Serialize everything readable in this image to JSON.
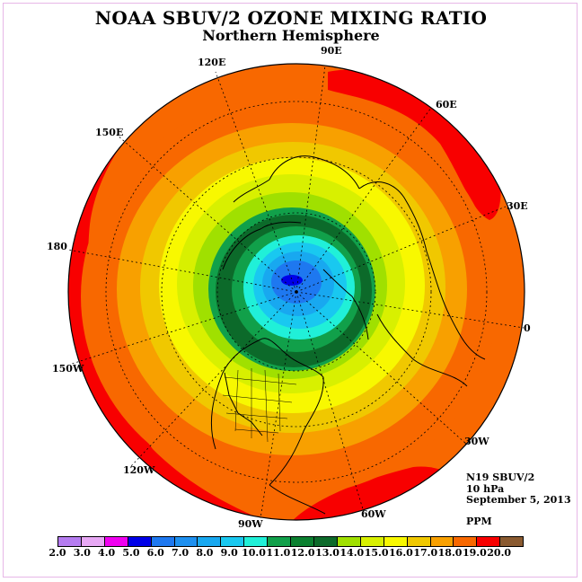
{
  "title": "NOAA SBUV/2 OZONE MIXING RATIO",
  "subtitle": "Northern Hemisphere",
  "longitude_labels": [
    "90E",
    "60E",
    "30E",
    "0",
    "30W",
    "60W",
    "90W",
    "120W",
    "150W",
    "180",
    "150E",
    "120E"
  ],
  "info": {
    "instrument": "N19 SBUV/2",
    "level": "10 hPa",
    "date": "September 5, 2013",
    "units": "PPM"
  },
  "colorbar": {
    "ticks": [
      "2.0",
      "3.0",
      "4.0",
      "5.0",
      "6.0",
      "7.0",
      "8.0",
      "9.0",
      "10.0",
      "11.0",
      "12.0",
      "13.0",
      "14.0",
      "15.0",
      "16.0",
      "17.0",
      "18.0",
      "19.0",
      "20.0"
    ],
    "colors": [
      "#b57cf0",
      "#e7a8f4",
      "#f000f0",
      "#0000e8",
      "#1e78f0",
      "#1e90f0",
      "#18a8f0",
      "#19c8f0",
      "#20f0d8",
      "#11a04a",
      "#0b8030",
      "#0c6a2a",
      "#a0e000",
      "#d8f000",
      "#f8f800",
      "#f0c800",
      "#f8a000",
      "#f86800",
      "#f80000",
      "#8a5a30"
    ]
  }
}
